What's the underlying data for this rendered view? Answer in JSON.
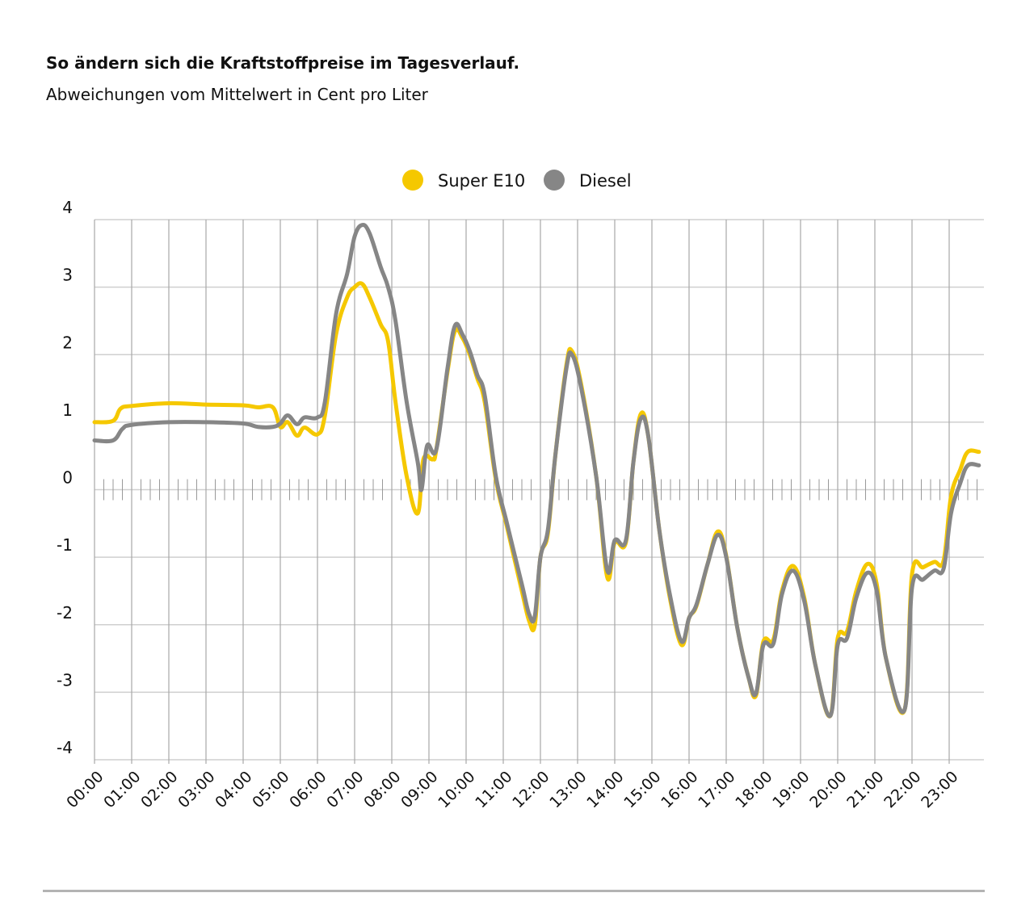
{
  "chart_data": {
    "type": "line",
    "title": "So ändern sich die Kraftstoffpreise im Tagesverlauf.",
    "subtitle": "Abweichungen vom Mittelwert in Cent pro Liter",
    "xlabel": "",
    "ylabel": "",
    "ylim": [
      -4,
      4
    ],
    "xlim": [
      0,
      23.8
    ],
    "grid": true,
    "legend_position": "top-center",
    "y_ticks": [
      "4",
      "3",
      "2",
      "1",
      "0",
      "-1",
      "-2",
      "-3",
      "-4"
    ],
    "y_tick_values": [
      4,
      3,
      2,
      1,
      0,
      -1,
      -2,
      -3,
      -4
    ],
    "x_ticks": [
      "00:00",
      "01:00",
      "02:00",
      "03:00",
      "04:00",
      "05:00",
      "06:00",
      "07:00",
      "08:00",
      "09:00",
      "10:00",
      "11:00",
      "12:00",
      "13:00",
      "14:00",
      "15:00",
      "16:00",
      "17:00",
      "18:00",
      "19:00",
      "20:00",
      "21:00",
      "22:00",
      "23:00"
    ],
    "series": [
      {
        "name": "Super E10",
        "color": "#f5c800",
        "points": [
          [
            0,
            1.0
          ],
          [
            0.5,
            1.02
          ],
          [
            0.7,
            1.2
          ],
          [
            1.0,
            1.24
          ],
          [
            2.0,
            1.28
          ],
          [
            3.0,
            1.26
          ],
          [
            4.0,
            1.25
          ],
          [
            4.4,
            1.22
          ],
          [
            4.8,
            1.22
          ],
          [
            5.0,
            0.93
          ],
          [
            5.2,
            1.0
          ],
          [
            5.45,
            0.8
          ],
          [
            5.65,
            0.92
          ],
          [
            6.0,
            0.82
          ],
          [
            6.2,
            1.1
          ],
          [
            6.5,
            2.3
          ],
          [
            6.8,
            2.85
          ],
          [
            7.0,
            3.0
          ],
          [
            7.2,
            3.05
          ],
          [
            7.4,
            2.85
          ],
          [
            7.7,
            2.45
          ],
          [
            7.9,
            2.2
          ],
          [
            8.1,
            1.3
          ],
          [
            8.4,
            0.2
          ],
          [
            8.7,
            -0.35
          ],
          [
            8.85,
            0.45
          ],
          [
            9.1,
            0.45
          ],
          [
            9.2,
            0.6
          ],
          [
            9.5,
            1.75
          ],
          [
            9.7,
            2.35
          ],
          [
            9.9,
            2.25
          ],
          [
            10.1,
            2.0
          ],
          [
            10.3,
            1.65
          ],
          [
            10.5,
            1.3
          ],
          [
            10.8,
            0.15
          ],
          [
            11.1,
            -0.55
          ],
          [
            11.5,
            -1.5
          ],
          [
            11.7,
            -1.95
          ],
          [
            11.85,
            -2.0
          ],
          [
            12.0,
            -1.0
          ],
          [
            12.2,
            -0.65
          ],
          [
            12.4,
            0.5
          ],
          [
            12.7,
            1.85
          ],
          [
            12.85,
            2.05
          ],
          [
            13.1,
            1.55
          ],
          [
            13.5,
            0.2
          ],
          [
            13.8,
            -1.3
          ],
          [
            14.0,
            -0.78
          ],
          [
            14.3,
            -0.78
          ],
          [
            14.5,
            0.4
          ],
          [
            14.7,
            1.12
          ],
          [
            14.9,
            0.8
          ],
          [
            15.2,
            -0.6
          ],
          [
            15.5,
            -1.65
          ],
          [
            15.8,
            -2.3
          ],
          [
            16.0,
            -1.9
          ],
          [
            16.2,
            -1.72
          ],
          [
            16.5,
            -1.1
          ],
          [
            16.77,
            -0.62
          ],
          [
            17.0,
            -0.98
          ],
          [
            17.3,
            -2.05
          ],
          [
            17.6,
            -2.78
          ],
          [
            17.8,
            -3.05
          ],
          [
            18.0,
            -2.25
          ],
          [
            18.27,
            -2.22
          ],
          [
            18.5,
            -1.5
          ],
          [
            18.8,
            -1.13
          ],
          [
            19.1,
            -1.6
          ],
          [
            19.4,
            -2.6
          ],
          [
            19.8,
            -3.35
          ],
          [
            20.0,
            -2.2
          ],
          [
            20.25,
            -2.1
          ],
          [
            20.5,
            -1.5
          ],
          [
            20.8,
            -1.1
          ],
          [
            21.05,
            -1.4
          ],
          [
            21.3,
            -2.5
          ],
          [
            21.8,
            -3.26
          ],
          [
            22.0,
            -1.25
          ],
          [
            22.3,
            -1.15
          ],
          [
            22.6,
            -1.07
          ],
          [
            22.85,
            -1.05
          ],
          [
            23.05,
            -0.1
          ],
          [
            23.3,
            0.3
          ],
          [
            23.5,
            0.56
          ],
          [
            23.8,
            0.56
          ]
        ]
      },
      {
        "name": "Diesel",
        "color": "#868686",
        "points": [
          [
            0,
            0.73
          ],
          [
            0.5,
            0.73
          ],
          [
            0.75,
            0.9
          ],
          [
            1.0,
            0.96
          ],
          [
            2.0,
            1.0
          ],
          [
            3.0,
            1.0
          ],
          [
            4.0,
            0.98
          ],
          [
            4.4,
            0.93
          ],
          [
            4.8,
            0.93
          ],
          [
            5.0,
            0.98
          ],
          [
            5.2,
            1.1
          ],
          [
            5.45,
            0.97
          ],
          [
            5.65,
            1.07
          ],
          [
            6.0,
            1.07
          ],
          [
            6.2,
            1.3
          ],
          [
            6.5,
            2.6
          ],
          [
            6.8,
            3.2
          ],
          [
            7.0,
            3.75
          ],
          [
            7.2,
            3.92
          ],
          [
            7.4,
            3.8
          ],
          [
            7.7,
            3.3
          ],
          [
            7.9,
            3.0
          ],
          [
            8.1,
            2.5
          ],
          [
            8.4,
            1.3
          ],
          [
            8.7,
            0.4
          ],
          [
            8.8,
            0.0
          ],
          [
            8.95,
            0.65
          ],
          [
            9.2,
            0.6
          ],
          [
            9.5,
            1.8
          ],
          [
            9.7,
            2.43
          ],
          [
            9.9,
            2.3
          ],
          [
            10.1,
            2.05
          ],
          [
            10.3,
            1.7
          ],
          [
            10.5,
            1.4
          ],
          [
            10.8,
            0.2
          ],
          [
            11.1,
            -0.5
          ],
          [
            11.5,
            -1.4
          ],
          [
            11.7,
            -1.85
          ],
          [
            11.85,
            -1.87
          ],
          [
            12.0,
            -1.0
          ],
          [
            12.2,
            -0.6
          ],
          [
            12.4,
            0.5
          ],
          [
            12.7,
            1.8
          ],
          [
            12.85,
            2.0
          ],
          [
            13.1,
            1.5
          ],
          [
            13.5,
            0.2
          ],
          [
            13.8,
            -1.2
          ],
          [
            14.0,
            -0.75
          ],
          [
            14.3,
            -0.75
          ],
          [
            14.5,
            0.4
          ],
          [
            14.7,
            1.05
          ],
          [
            14.9,
            0.8
          ],
          [
            15.2,
            -0.6
          ],
          [
            15.5,
            -1.6
          ],
          [
            15.8,
            -2.25
          ],
          [
            16.0,
            -1.9
          ],
          [
            16.2,
            -1.7
          ],
          [
            16.5,
            -1.1
          ],
          [
            16.77,
            -0.67
          ],
          [
            17.0,
            -1.0
          ],
          [
            17.3,
            -2.05
          ],
          [
            17.6,
            -2.78
          ],
          [
            17.8,
            -3.02
          ],
          [
            18.0,
            -2.3
          ],
          [
            18.27,
            -2.28
          ],
          [
            18.5,
            -1.55
          ],
          [
            18.8,
            -1.2
          ],
          [
            19.1,
            -1.65
          ],
          [
            19.4,
            -2.6
          ],
          [
            19.8,
            -3.35
          ],
          [
            20.0,
            -2.3
          ],
          [
            20.25,
            -2.2
          ],
          [
            20.5,
            -1.6
          ],
          [
            20.8,
            -1.23
          ],
          [
            21.05,
            -1.5
          ],
          [
            21.3,
            -2.5
          ],
          [
            21.8,
            -3.26
          ],
          [
            22.0,
            -1.45
          ],
          [
            22.3,
            -1.33
          ],
          [
            22.6,
            -1.2
          ],
          [
            22.85,
            -1.17
          ],
          [
            23.05,
            -0.35
          ],
          [
            23.3,
            0.1
          ],
          [
            23.5,
            0.36
          ],
          [
            23.8,
            0.36
          ]
        ]
      }
    ]
  }
}
